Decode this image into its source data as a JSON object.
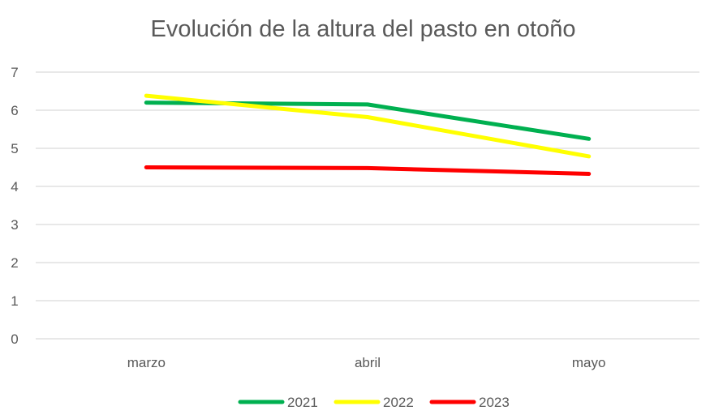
{
  "chart_data": {
    "type": "line",
    "title": "Evolución de la altura del pasto en otoño",
    "xlabel": "",
    "ylabel": "",
    "categories": [
      "marzo",
      "abril",
      "mayo"
    ],
    "ylim": [
      0,
      7
    ],
    "yticks": [
      "0",
      "1",
      "2",
      "3",
      "4",
      "5",
      "6",
      "7"
    ],
    "grid": true,
    "legend_position": "bottom",
    "series": [
      {
        "name": "2021",
        "color": "#00B050",
        "values": [
          6.2,
          6.15,
          5.25
        ]
      },
      {
        "name": "2022",
        "color": "#FFFF00",
        "values": [
          6.38,
          5.82,
          4.79
        ]
      },
      {
        "name": "2023",
        "color": "#FF0000",
        "values": [
          4.5,
          4.48,
          4.33
        ]
      }
    ]
  }
}
